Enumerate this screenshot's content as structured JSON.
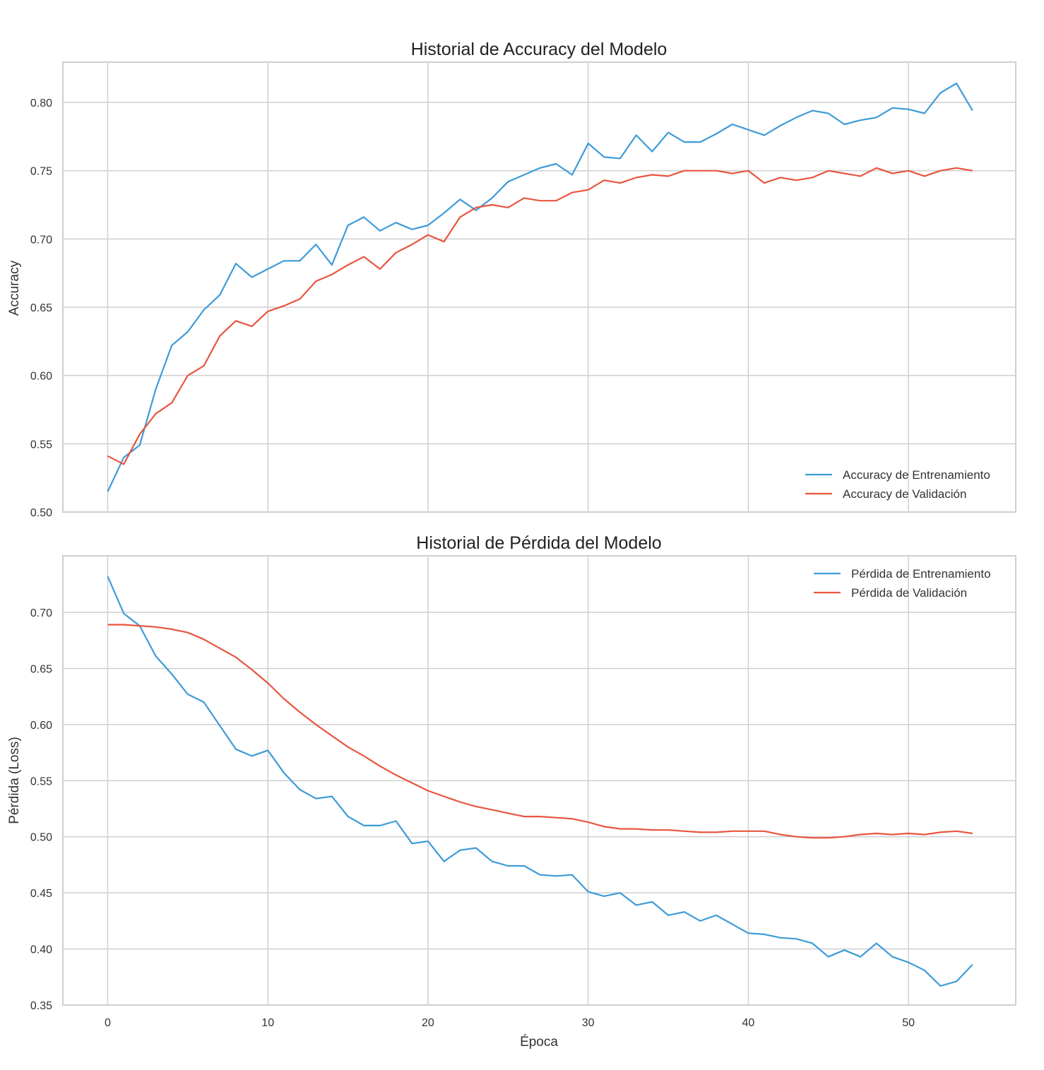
{
  "chart_data": [
    {
      "type": "line",
      "title": "Historial de Accuracy del Modelo",
      "xlabel": "",
      "ylabel": "Accuracy",
      "xlim": [
        -2.8,
        56.7
      ],
      "ylim": [
        0.5,
        0.8295
      ],
      "xticks": [
        0,
        10,
        20,
        30,
        40,
        50
      ],
      "yticks": [
        0.5,
        0.55,
        0.6,
        0.65,
        0.7,
        0.75,
        0.8
      ],
      "ytick_labels": [
        "0.50",
        "0.55",
        "0.60",
        "0.65",
        "0.70",
        "0.75",
        "0.80"
      ],
      "grid": true,
      "legend": "lower-right",
      "series": [
        {
          "name": "Accuracy de Entrenamiento",
          "color": "#3d9bd8",
          "values": [
            0.515,
            0.54,
            0.549,
            0.59,
            0.622,
            0.632,
            0.648,
            0.659,
            0.682,
            0.672,
            0.678,
            0.684,
            0.684,
            0.696,
            0.681,
            0.71,
            0.716,
            0.706,
            0.712,
            0.707,
            0.71,
            0.719,
            0.729,
            0.721,
            0.73,
            0.742,
            0.747,
            0.752,
            0.755,
            0.747,
            0.77,
            0.76,
            0.759,
            0.776,
            0.764,
            0.778,
            0.771,
            0.771,
            0.777,
            0.784,
            0.78,
            0.776,
            0.783,
            0.789,
            0.794,
            0.792,
            0.784,
            0.787,
            0.789,
            0.796,
            0.795,
            0.792,
            0.807,
            0.814,
            0.794
          ]
        },
        {
          "name": "Accuracy de Validación",
          "color": "#e8553f",
          "values": [
            0.541,
            0.535,
            0.557,
            0.572,
            0.58,
            0.6,
            0.607,
            0.629,
            0.64,
            0.636,
            0.647,
            0.651,
            0.656,
            0.669,
            0.674,
            0.681,
            0.687,
            0.678,
            0.69,
            0.696,
            0.703,
            0.698,
            0.716,
            0.723,
            0.725,
            0.723,
            0.73,
            0.728,
            0.728,
            0.734,
            0.736,
            0.743,
            0.741,
            0.745,
            0.747,
            0.746,
            0.75,
            0.75,
            0.75,
            0.748,
            0.75,
            0.741,
            0.745,
            0.743,
            0.745,
            0.75,
            0.748,
            0.746,
            0.752,
            0.748,
            0.75,
            0.746,
            0.75,
            0.752,
            0.75
          ]
        }
      ]
    },
    {
      "type": "line",
      "title": "Historial de Pérdida del Modelo",
      "xlabel": "Época",
      "ylabel": "Pérdida (Loss)",
      "xlim": [
        -2.8,
        56.7
      ],
      "ylim": [
        0.35,
        0.7504
      ],
      "xticks": [
        0,
        10,
        20,
        30,
        40,
        50
      ],
      "yticks": [
        0.35,
        0.4,
        0.45,
        0.5,
        0.55,
        0.6,
        0.65,
        0.7
      ],
      "ytick_labels": [
        "0.35",
        "0.40",
        "0.45",
        "0.50",
        "0.55",
        "0.60",
        "0.65",
        "0.70"
      ],
      "grid": true,
      "legend": "upper-right",
      "series": [
        {
          "name": "Pérdida de Entrenamiento",
          "color": "#3d9bd8",
          "values": [
            0.732,
            0.699,
            0.688,
            0.661,
            0.645,
            0.627,
            0.62,
            0.599,
            0.578,
            0.572,
            0.577,
            0.557,
            0.542,
            0.534,
            0.536,
            0.518,
            0.51,
            0.51,
            0.514,
            0.494,
            0.496,
            0.478,
            0.488,
            0.49,
            0.478,
            0.474,
            0.474,
            0.466,
            0.465,
            0.466,
            0.451,
            0.447,
            0.45,
            0.439,
            0.442,
            0.43,
            0.433,
            0.425,
            0.43,
            0.422,
            0.414,
            0.413,
            0.41,
            0.409,
            0.405,
            0.393,
            0.399,
            0.393,
            0.405,
            0.393,
            0.388,
            0.381,
            0.367,
            0.371,
            0.386
          ]
        },
        {
          "name": "Pérdida de Validación",
          "color": "#e8553f",
          "values": [
            0.689,
            0.689,
            0.688,
            0.687,
            0.685,
            0.682,
            0.676,
            0.668,
            0.66,
            0.649,
            0.637,
            0.623,
            0.611,
            0.6,
            0.59,
            0.58,
            0.572,
            0.563,
            0.555,
            0.548,
            0.541,
            0.536,
            0.531,
            0.527,
            0.524,
            0.521,
            0.518,
            0.518,
            0.517,
            0.516,
            0.513,
            0.509,
            0.507,
            0.507,
            0.506,
            0.506,
            0.505,
            0.504,
            0.504,
            0.505,
            0.505,
            0.505,
            0.502,
            0.5,
            0.499,
            0.499,
            0.5,
            0.502,
            0.503,
            0.502,
            0.503,
            0.502,
            0.504,
            0.505,
            0.503
          ]
        }
      ]
    }
  ]
}
